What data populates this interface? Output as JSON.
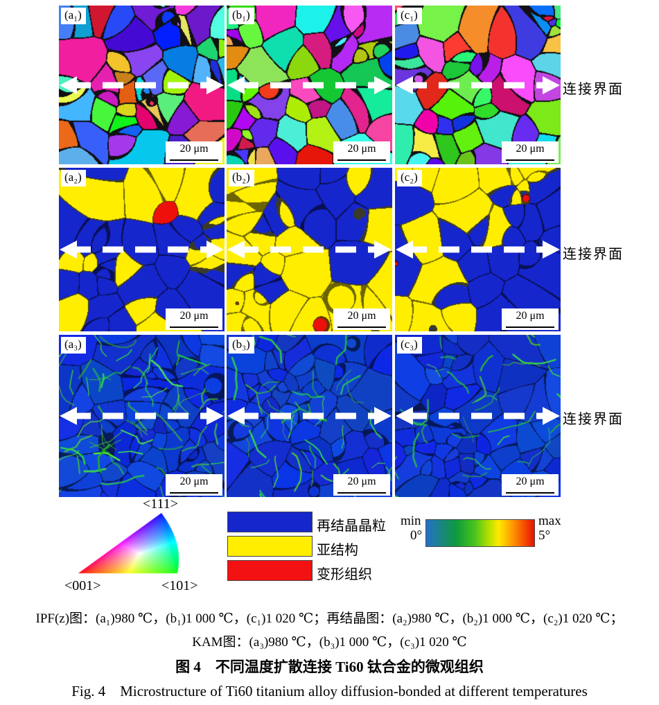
{
  "figure": {
    "interface_label": "连接界面",
    "scale_label": "20 μm",
    "panels": [
      {
        "label": "(a₁)"
      },
      {
        "label": "(b₁)"
      },
      {
        "label": "(c₁)"
      },
      {
        "label": "(a₂)"
      },
      {
        "label": "(b₂)"
      },
      {
        "label": "(c₂)"
      },
      {
        "label": "(a₃)"
      },
      {
        "label": "(b₃)"
      },
      {
        "label": "(c₃)"
      }
    ],
    "ipf_legend": {
      "top": "<111>",
      "bottom_left": "<001>",
      "bottom_right": "<101>"
    },
    "phase_legend": {
      "items": [
        {
          "label": "再结晶晶粒",
          "color": "#1626cd"
        },
        {
          "label": "亚结构",
          "color": "#ffee00"
        },
        {
          "label": "变形组织",
          "color": "#f31111"
        }
      ]
    },
    "kam_legend": {
      "min_label": "min",
      "min_value": "0°",
      "max_label": "max",
      "max_value": "5°"
    },
    "caption": {
      "line1": "IPF(z)图：(a₁)980 ℃，(b₁)1 000 ℃，(c₁)1 020 ℃；再结晶图：(a₂)980 ℃，(b₂)1 000 ℃，(c₂)1 020 ℃；",
      "line2": "KAM图：(a₃)980 ℃，(b₃)1 000 ℃，(c₃)1 020 ℃",
      "line3": "图 4　不同温度扩散连接 Ti60 钛合金的微观组织",
      "line4": "Fig. 4　Microstructure of Ti60 titanium alloy diffusion-bonded at different temperatures"
    }
  }
}
